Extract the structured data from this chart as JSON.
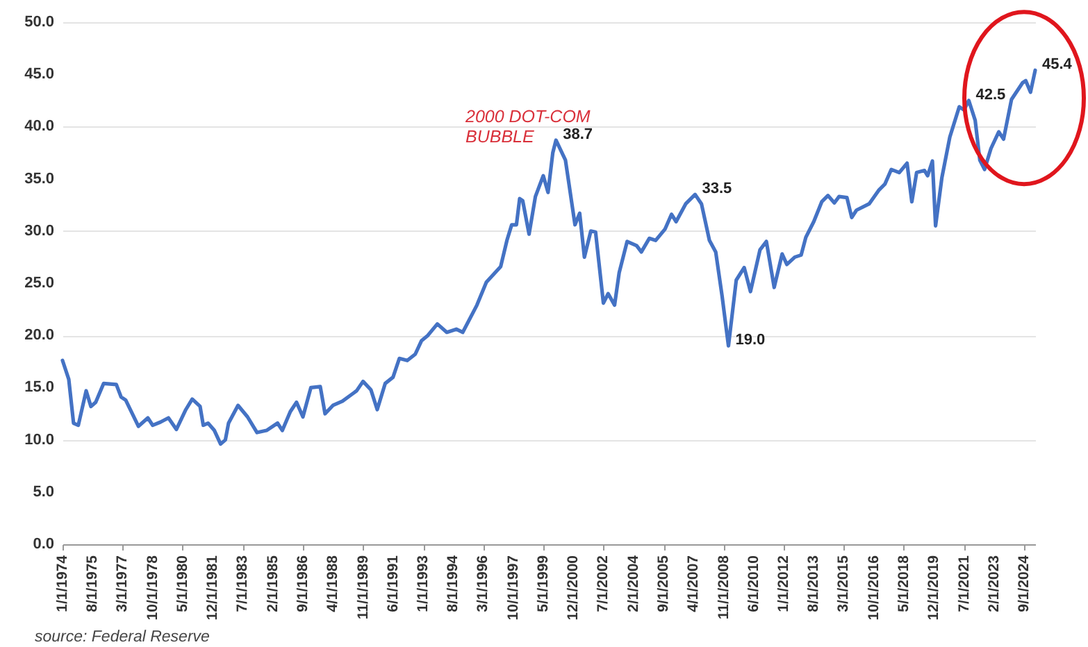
{
  "chart_data": {
    "type": "line",
    "color": "#4472c4",
    "x": [
      "1974-01",
      "1974-05",
      "1974-08",
      "1974-11",
      "1975-04",
      "1975-07",
      "1975-10",
      "1976-03",
      "1976-11",
      "1977-02",
      "1977-05",
      "1978-01",
      "1978-07",
      "1978-10",
      "1979-03",
      "1979-08",
      "1980-01",
      "1980-07",
      "1980-11",
      "1981-04",
      "1981-06",
      "1981-09",
      "1982-01",
      "1982-05",
      "1982-08",
      "1982-10",
      "1983-04",
      "1983-10",
      "1984-04",
      "1984-10",
      "1985-05",
      "1985-08",
      "1986-01",
      "1986-05",
      "1986-09",
      "1987-02",
      "1987-08",
      "1987-11",
      "1988-04",
      "1988-10",
      "1989-07",
      "1989-11",
      "1990-04",
      "1990-08",
      "1991-01",
      "1991-06",
      "1991-10",
      "1992-03",
      "1992-08",
      "1992-12",
      "1993-04",
      "1993-10",
      "1994-04",
      "1994-10",
      "1995-02",
      "1995-11",
      "1996-05",
      "1997-02",
      "1997-06",
      "1997-09",
      "1997-12",
      "1998-02",
      "1998-04",
      "1998-08",
      "1998-12",
      "1999-05",
      "1999-08",
      "1999-11",
      "2000-01",
      "2000-07",
      "2001-01",
      "2001-04",
      "2001-07",
      "2001-11",
      "2002-02",
      "2002-07",
      "2002-10",
      "2003-02",
      "2003-05",
      "2003-10",
      "2004-04",
      "2004-07",
      "2004-12",
      "2005-04",
      "2005-10",
      "2006-02",
      "2006-05",
      "2006-11",
      "2007-05",
      "2007-09",
      "2008-02",
      "2008-06",
      "2008-10",
      "2009-02",
      "2009-07",
      "2009-12",
      "2010-04",
      "2010-10",
      "2011-02",
      "2011-07",
      "2011-12",
      "2012-03",
      "2012-08",
      "2012-12",
      "2013-03",
      "2013-08",
      "2014-01",
      "2014-05",
      "2014-09",
      "2014-12",
      "2015-05",
      "2015-08",
      "2015-11",
      "2016-07",
      "2017-01",
      "2017-05",
      "2017-09",
      "2018-02",
      "2018-07",
      "2018-10",
      "2019-01",
      "2019-06",
      "2019-08",
      "2019-11",
      "2020-01",
      "2020-05",
      "2020-10",
      "2021-04",
      "2021-07",
      "2021-10",
      "2022-02",
      "2022-05",
      "2022-08",
      "2022-12",
      "2023-05",
      "2023-08",
      "2024-01",
      "2024-08",
      "2024-10",
      "2025-01",
      "2025-04"
    ],
    "values": [
      17.6,
      15.8,
      11.6,
      11.4,
      14.7,
      13.2,
      13.6,
      15.4,
      15.3,
      14.1,
      13.8,
      11.3,
      12.1,
      11.4,
      11.7,
      12.1,
      11.0,
      12.9,
      13.9,
      13.2,
      11.4,
      11.6,
      10.9,
      9.6,
      10.0,
      11.6,
      13.3,
      12.2,
      10.7,
      10.9,
      11.6,
      10.9,
      12.7,
      13.6,
      12.2,
      15.0,
      15.1,
      12.5,
      13.3,
      13.7,
      14.7,
      15.6,
      14.8,
      12.9,
      15.4,
      16.0,
      17.8,
      17.6,
      18.2,
      19.5,
      20.0,
      21.1,
      20.3,
      20.6,
      20.3,
      22.9,
      25.1,
      26.6,
      29.1,
      30.6,
      30.6,
      33.1,
      32.9,
      29.7,
      33.3,
      35.3,
      33.7,
      37.5,
      38.7,
      36.8,
      30.6,
      31.7,
      27.5,
      30.0,
      29.9,
      23.1,
      24.0,
      22.9,
      26.0,
      29.0,
      28.6,
      28.0,
      29.3,
      29.1,
      30.2,
      31.6,
      30.9,
      32.6,
      33.5,
      32.6,
      29.1,
      28.0,
      23.8,
      19.0,
      25.3,
      26.5,
      24.2,
      28.2,
      29.0,
      24.6,
      27.8,
      26.8,
      27.5,
      27.7,
      29.4,
      30.9,
      32.8,
      33.4,
      32.7,
      33.3,
      33.2,
      31.3,
      32.0,
      32.6,
      33.9,
      34.5,
      35.9,
      35.6,
      36.5,
      32.8,
      35.6,
      35.8,
      35.3,
      36.7,
      30.5,
      35.1,
      39.0,
      41.9,
      41.6,
      42.5,
      40.6,
      36.8,
      35.9,
      37.9,
      39.5,
      38.8,
      42.6,
      44.2,
      44.4,
      43.3,
      45.4
    ],
    "value_labels": [
      null,
      null,
      null,
      null,
      null,
      null,
      null,
      null,
      null,
      null,
      null,
      null,
      null,
      null,
      null,
      null,
      null,
      null,
      null,
      null,
      null,
      null,
      null,
      null,
      null,
      null,
      null,
      null,
      null,
      null,
      null,
      null,
      null,
      null,
      null,
      null,
      null,
      null,
      null,
      null,
      null,
      null,
      null,
      null,
      null,
      null,
      null,
      null,
      null,
      null,
      null,
      null,
      null,
      null,
      null,
      null,
      null,
      null,
      null,
      null,
      null,
      null,
      null,
      null,
      null,
      null,
      null,
      null,
      "38.7",
      null,
      null,
      null,
      null,
      null,
      null,
      null,
      null,
      null,
      null,
      null,
      null,
      null,
      null,
      null,
      null,
      null,
      null,
      null,
      "33.5",
      null,
      null,
      null,
      null,
      "19.0",
      null,
      null,
      null,
      null,
      null,
      null,
      null,
      null,
      null,
      null,
      null,
      null,
      null,
      null,
      null,
      null,
      null,
      null,
      null,
      null,
      null,
      null,
      null,
      null,
      null,
      null,
      null,
      null,
      null,
      null,
      null,
      null,
      null,
      null,
      null,
      "42.5",
      null,
      null,
      null,
      null,
      null,
      null,
      null,
      null,
      null,
      null,
      "45.4"
    ],
    "xlim": [
      "1974-01-01",
      "2025-04-01"
    ],
    "xticks": [
      {
        "value": "1974-01-01",
        "label": "1/1/1974"
      },
      {
        "value": "1975-08-01",
        "label": "8/1/1975"
      },
      {
        "value": "1977-03-01",
        "label": "3/1/1977"
      },
      {
        "value": "1978-10-01",
        "label": "10/1/1978"
      },
      {
        "value": "1980-05-01",
        "label": "5/1/1980"
      },
      {
        "value": "1981-12-01",
        "label": "12/1/1981"
      },
      {
        "value": "1983-07-01",
        "label": "7/1/1983"
      },
      {
        "value": "1985-02-01",
        "label": "2/1/1985"
      },
      {
        "value": "1986-09-01",
        "label": "9/1/1986"
      },
      {
        "value": "1988-04-01",
        "label": "4/1/1988"
      },
      {
        "value": "1989-11-01",
        "label": "11/1/1989"
      },
      {
        "value": "1991-06-01",
        "label": "6/1/1991"
      },
      {
        "value": "1993-01-01",
        "label": "1/1/1993"
      },
      {
        "value": "1994-08-01",
        "label": "8/1/1994"
      },
      {
        "value": "1996-03-01",
        "label": "3/1/1996"
      },
      {
        "value": "1997-10-01",
        "label": "10/1/1997"
      },
      {
        "value": "1999-05-01",
        "label": "5/1/1999"
      },
      {
        "value": "2000-12-01",
        "label": "12/1/2000"
      },
      {
        "value": "2002-07-01",
        "label": "7/1/2002"
      },
      {
        "value": "2004-02-01",
        "label": "2/1/2004"
      },
      {
        "value": "2005-09-01",
        "label": "9/1/2005"
      },
      {
        "value": "2007-04-01",
        "label": "4/1/2007"
      },
      {
        "value": "2008-11-01",
        "label": "11/1/2008"
      },
      {
        "value": "2010-06-01",
        "label": "6/1/2010"
      },
      {
        "value": "2012-01-01",
        "label": "1/1/2012"
      },
      {
        "value": "2013-08-01",
        "label": "8/1/2013"
      },
      {
        "value": "2015-03-01",
        "label": "3/1/2015"
      },
      {
        "value": "2016-10-01",
        "label": "10/1/2016"
      },
      {
        "value": "2018-05-01",
        "label": "5/1/2018"
      },
      {
        "value": "2019-12-01",
        "label": "12/1/2019"
      },
      {
        "value": "2021-07-01",
        "label": "7/1/2021"
      },
      {
        "value": "2023-02-01",
        "label": "2/1/2023"
      },
      {
        "value": "2024-09-01",
        "label": "9/1/2024"
      }
    ],
    "ylim": [
      0,
      50
    ],
    "yticks": [
      {
        "value": 0,
        "label": "0.0"
      },
      {
        "value": 5,
        "label": "5.0"
      },
      {
        "value": 10,
        "label": "10.0"
      },
      {
        "value": 15,
        "label": "15.0"
      },
      {
        "value": 20,
        "label": "20.0"
      },
      {
        "value": 25,
        "label": "25.0"
      },
      {
        "value": 30,
        "label": "30.0"
      },
      {
        "value": 35,
        "label": "35.0"
      },
      {
        "value": 40,
        "label": "40.0"
      },
      {
        "value": 45,
        "label": "45.0"
      },
      {
        "value": 50,
        "label": "50.0"
      }
    ],
    "grid": "y",
    "annotations": [
      "2000 DOT-COM\nBUBBLE",
      "source: Federal Reserve"
    ]
  }
}
